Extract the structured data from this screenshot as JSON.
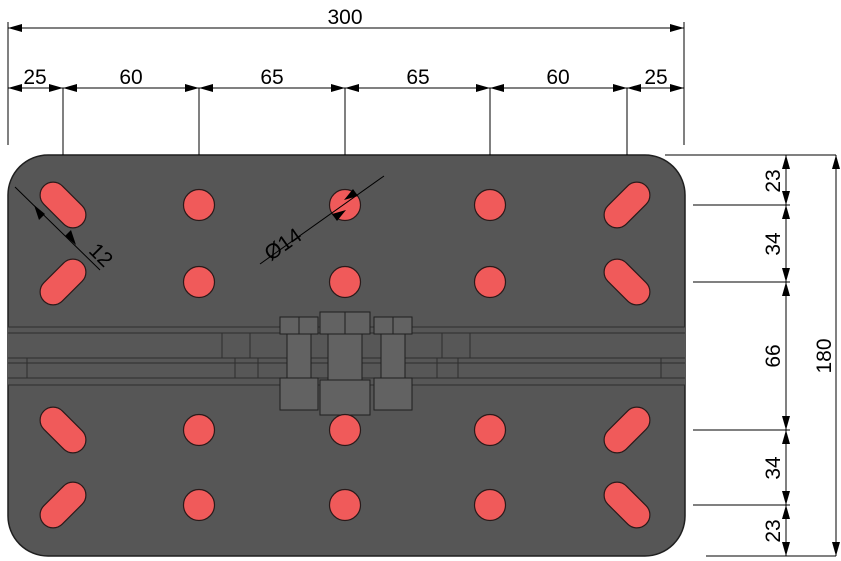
{
  "colors": {
    "plate": "#565656",
    "plate_edge": "#1f1f1f",
    "hole": "#f05a5a",
    "hole_edge": "#2a1a1a",
    "beam": "#575757",
    "beam_line": "#2e2e2e",
    "bolt": "#626262"
  },
  "horizontal_dims": {
    "overall": "300",
    "spacing": [
      "25",
      "60",
      "65",
      "65",
      "60",
      "25"
    ]
  },
  "vertical_dims": {
    "overall": "180",
    "spacing": [
      "23",
      "34",
      "66",
      "34",
      "23"
    ]
  },
  "callouts": {
    "hole_diameter": "Ø14",
    "slot_width": "12"
  },
  "icons": {
    "round_hole": "circle",
    "slot_hole": "rounded-slot",
    "bolt": "hex-bolt"
  }
}
